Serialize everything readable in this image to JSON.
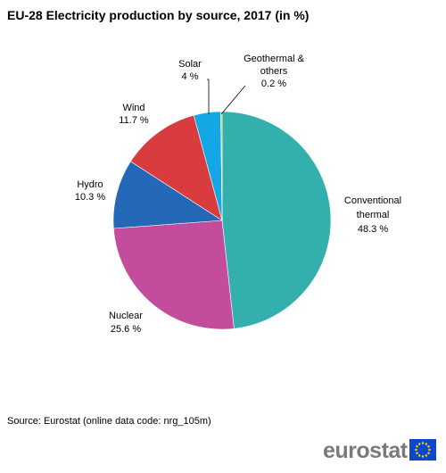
{
  "title": "EU-28 Electricity production by source, 2017 (in %)",
  "source": "Source: Eurostat (online data code: nrg_105m)",
  "logo": {
    "text": "eurostat"
  },
  "chart_data": {
    "type": "pie",
    "title": "EU-28 Electricity production by source, 2017 (in %)",
    "slices": [
      {
        "label_lines": [
          "Conventional",
          "thermal",
          "48.3 %"
        ],
        "value": 48.3,
        "color": "#33b0ae"
      },
      {
        "label_lines": [
          "Nuclear",
          "25.6 %"
        ],
        "value": 25.6,
        "color": "#c44c9d"
      },
      {
        "label_lines": [
          "Hydro",
          "10.3 %"
        ],
        "value": 10.3,
        "color": "#2469b8"
      },
      {
        "label_lines": [
          "Wind",
          "11.7 %"
        ],
        "value": 11.7,
        "color": "#d93c3f"
      },
      {
        "label_lines": [
          "Solar",
          "4 %"
        ],
        "value": 4.0,
        "color": "#13a8e5"
      },
      {
        "label_lines": [
          "Geothermal  &",
          "others",
          "0.2 %"
        ],
        "value": 0.2,
        "color": "#b5cc1c"
      }
    ]
  }
}
